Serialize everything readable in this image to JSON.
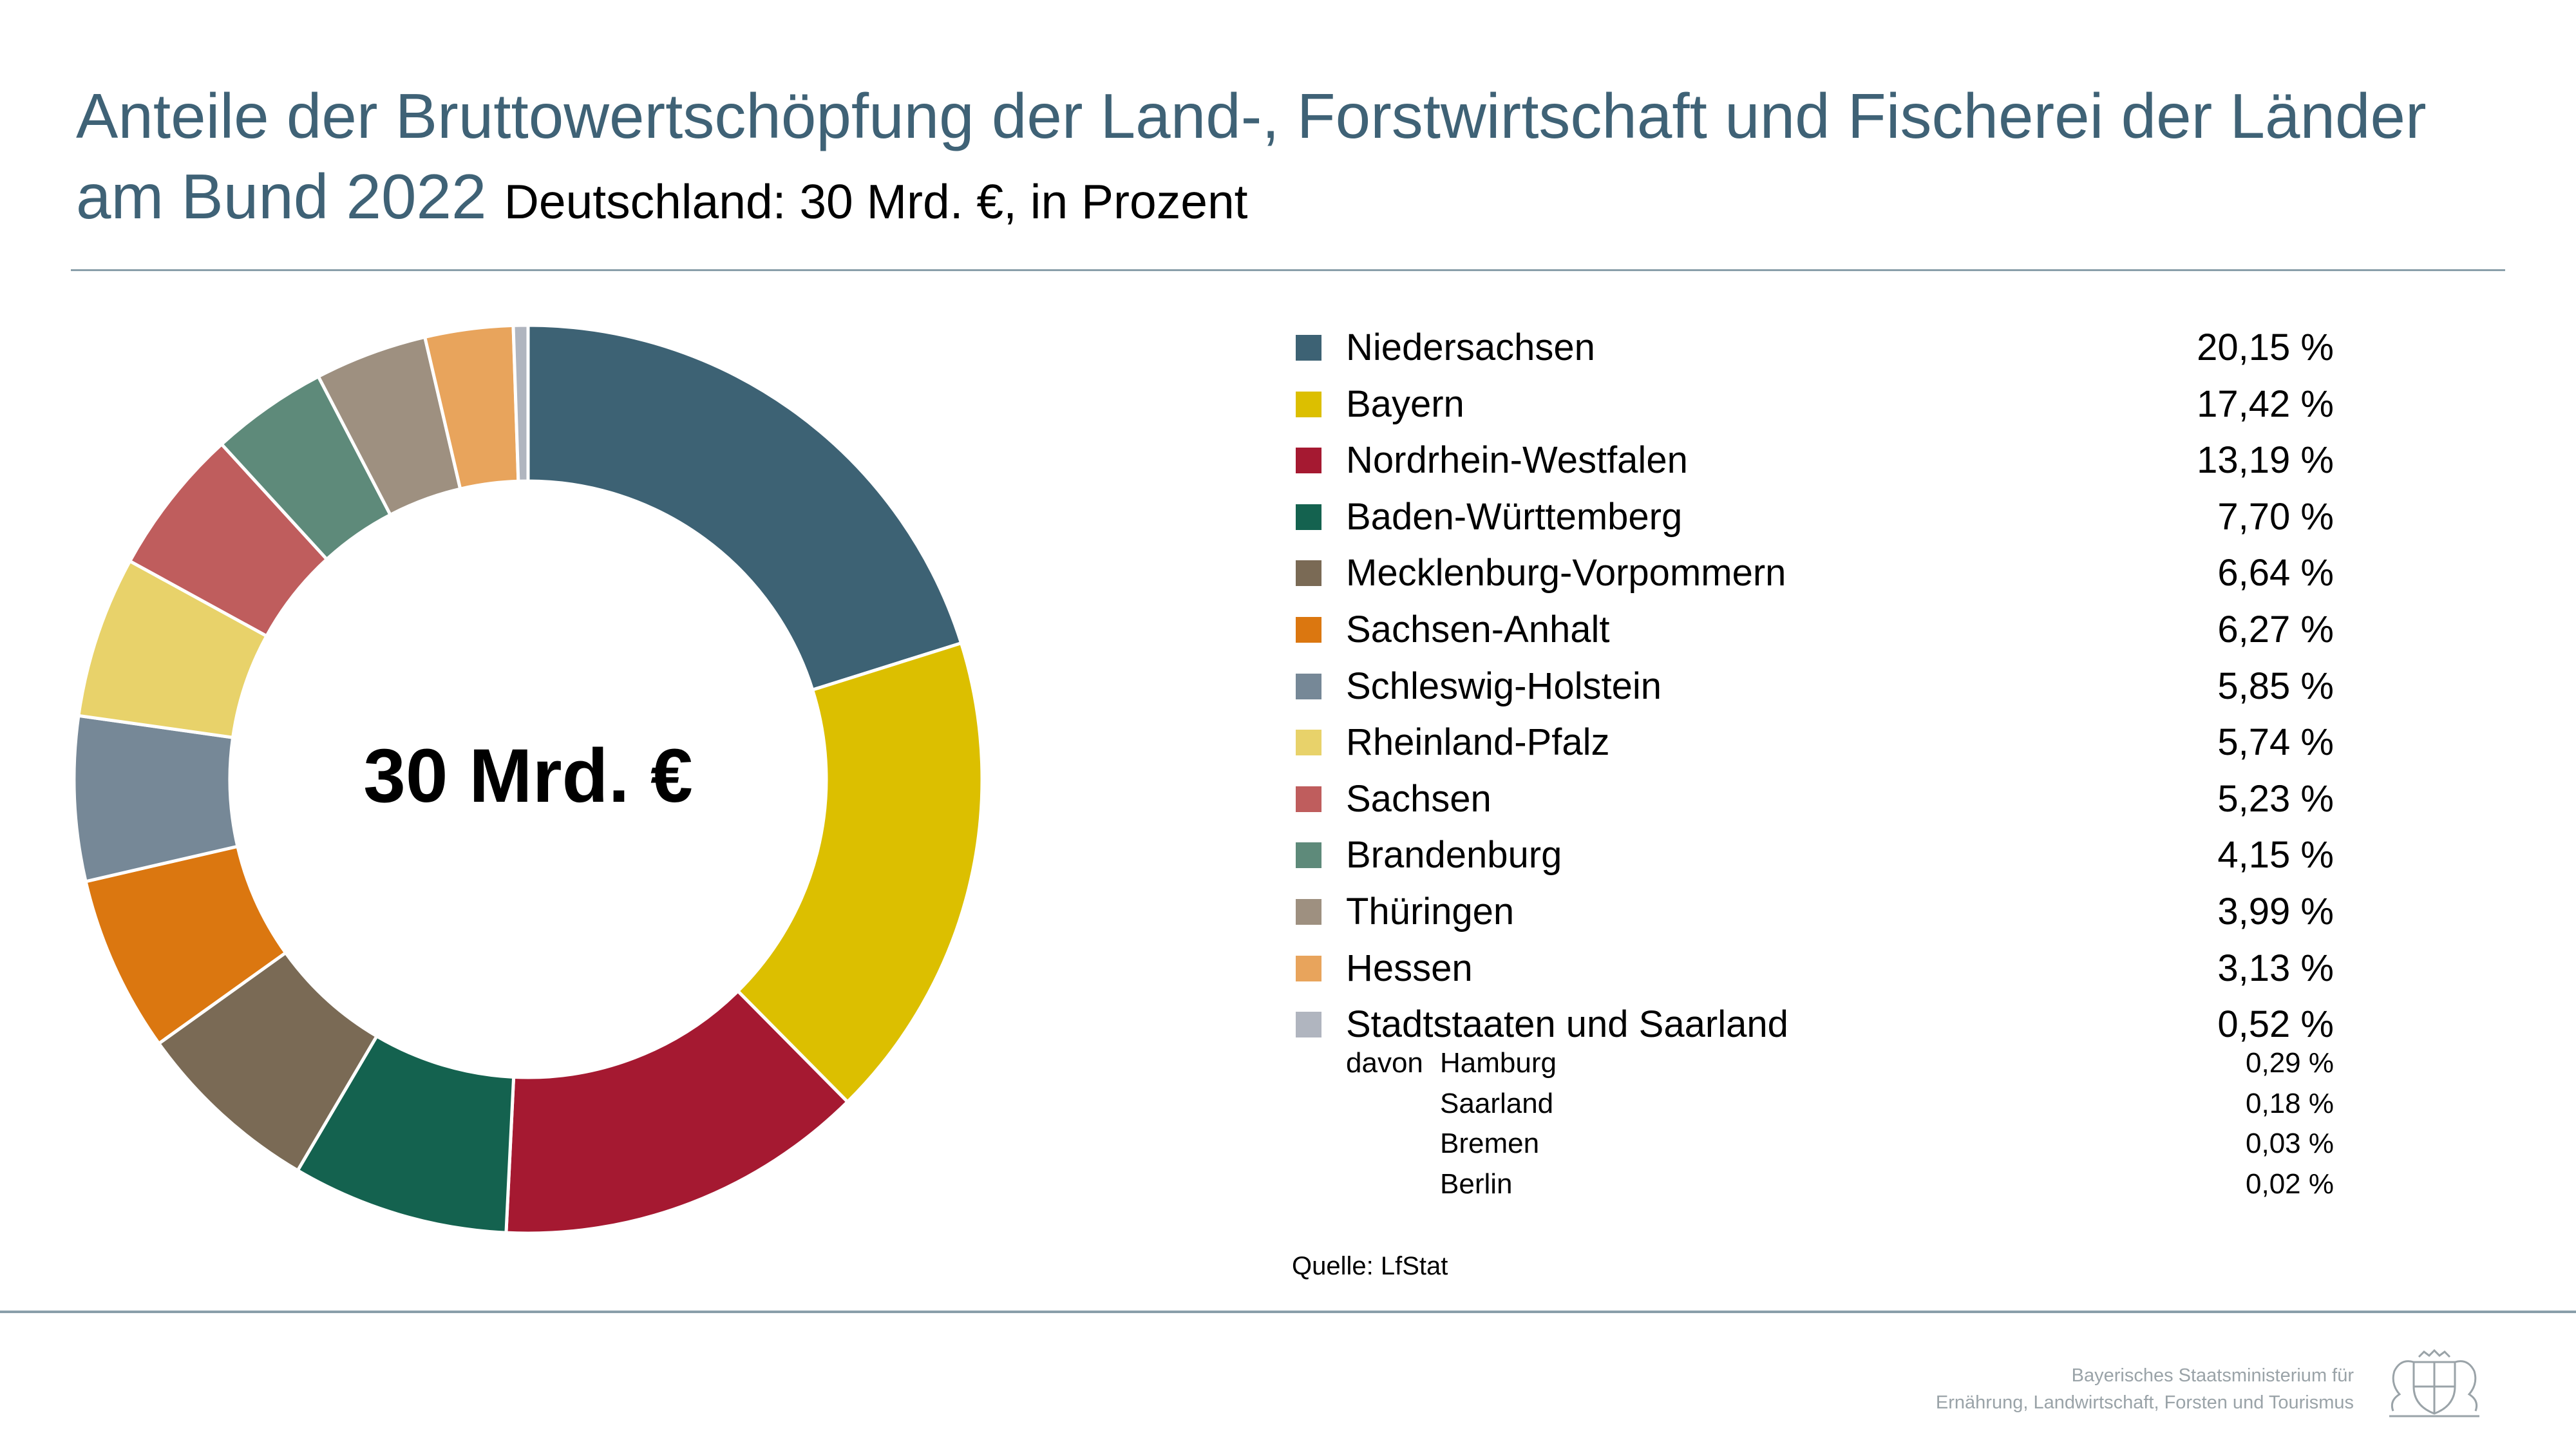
{
  "header": {
    "title": "Anteile der Bruttowertschöpfung der Land-, Forstwirtschaft und Fischerei der Länder am Bund 2022",
    "subtitle": "Deutschland: 30 Mrd. €, in Prozent"
  },
  "chart_data": {
    "type": "pie",
    "variant": "donut",
    "center_label": "30 Mrd. €",
    "categories": [
      "Niedersachsen",
      "Bayern",
      "Nordrhein-Westfalen",
      "Baden-Württemberg",
      "Mecklenburg-Vorpommern",
      "Sachsen-Anhalt",
      "Schleswig-Holstein",
      "Rheinland-Pfalz",
      "Sachsen",
      "Brandenburg",
      "Thüringen",
      "Hessen",
      "Stadtstaaten und Saarland"
    ],
    "values": [
      20.15,
      17.42,
      13.19,
      7.7,
      6.64,
      6.27,
      5.85,
      5.74,
      5.23,
      4.15,
      3.99,
      3.13,
      0.52
    ],
    "value_labels": [
      "20,15 %",
      "17,42 %",
      "13,19 %",
      "7,70 %",
      "6,64 %",
      "6,27 %",
      "5,85 %",
      "5,74 %",
      "5,23 %",
      "4,15 %",
      "3,99 %",
      "3,13 %",
      "0,52 %"
    ],
    "colors": [
      "#3d6274",
      "#dcbf00",
      "#a51931",
      "#14624f",
      "#7a6a55",
      "#db7710",
      "#768897",
      "#e8d26a",
      "#bf5d5d",
      "#5e8a7a",
      "#9e9080",
      "#e8a45c",
      "#b0b5bf"
    ],
    "breakdown": {
      "label": "davon",
      "items": [
        {
          "name": "Hamburg",
          "value": 0.29,
          "label": "0,29 %"
        },
        {
          "name": "Saarland",
          "value": 0.18,
          "label": "0,18 %"
        },
        {
          "name": "Bremen",
          "value": 0.03,
          "label": "0,03 %"
        },
        {
          "name": "Berlin",
          "value": 0.02,
          "label": "0,02 %"
        }
      ]
    },
    "legend_position": "right"
  },
  "source": "Quelle: LfStat",
  "footer": {
    "ministry_line1": "Bayerisches Staatsministerium für",
    "ministry_line2": "Ernährung, Landwirtschaft, Forsten und Tourismus",
    "coat_of_arms_icon": "bavarian-coat-of-arms-icon"
  }
}
